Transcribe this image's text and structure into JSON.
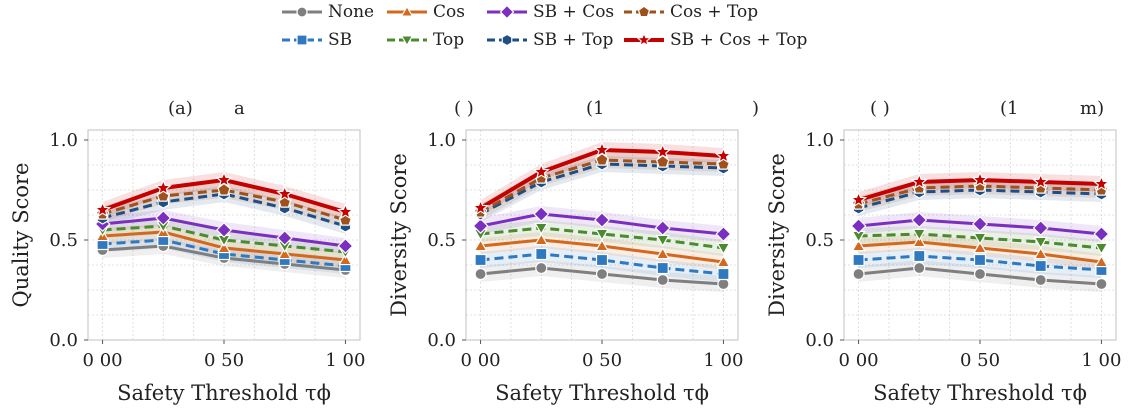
{
  "legend": {
    "items": [
      {
        "label": "None",
        "color": "#7f7f7f",
        "marker": "circle",
        "dash": "solid"
      },
      {
        "label": "Cos",
        "color": "#d2691e",
        "marker": "triangle-up",
        "dash": "solid"
      },
      {
        "label": "SB + Cos",
        "color": "#7b2fbe",
        "marker": "diamond",
        "dash": "solid"
      },
      {
        "label": "Cos + Top",
        "color": "#a0501a",
        "marker": "pentagon",
        "dash": "dashed"
      },
      {
        "label": "SB",
        "color": "#2f79c0",
        "marker": "square",
        "dash": "dashed"
      },
      {
        "label": "Top",
        "color": "#4b8a2f",
        "marker": "triangle-down",
        "dash": "dashed"
      },
      {
        "label": "SB + Top",
        "color": "#1f4e86",
        "marker": "hexagon",
        "dash": "dashed"
      },
      {
        "label": "SB + Cos + Top",
        "color": "#c40000",
        "marker": "star",
        "dash": "solid"
      }
    ]
  },
  "chart_data": [
    {
      "type": "line",
      "title_fragments": [
        "(a)",
        "a"
      ],
      "xlabel": "Safety Threshold τϕ",
      "ylabel": "Quality Score",
      "x": [
        0.0,
        0.25,
        0.5,
        0.75,
        1.0
      ],
      "xticks": [
        "0 00",
        "0 50",
        "1 00"
      ],
      "yticks": [
        "0.0",
        "0.5",
        "1.0"
      ],
      "xlim": [
        -0.06,
        1.06
      ],
      "ylim": [
        0.0,
        1.05
      ],
      "grid": true,
      "series": [
        {
          "name": "None",
          "values": [
            0.45,
            0.47,
            0.41,
            0.38,
            0.35
          ]
        },
        {
          "name": "SB",
          "values": [
            0.48,
            0.5,
            0.43,
            0.4,
            0.37
          ]
        },
        {
          "name": "Cos",
          "values": [
            0.52,
            0.54,
            0.46,
            0.43,
            0.4
          ]
        },
        {
          "name": "Top",
          "values": [
            0.55,
            0.57,
            0.5,
            0.47,
            0.44
          ]
        },
        {
          "name": "SB + Cos",
          "values": [
            0.58,
            0.61,
            0.55,
            0.51,
            0.47
          ]
        },
        {
          "name": "SB + Top",
          "values": [
            0.61,
            0.69,
            0.73,
            0.66,
            0.57
          ]
        },
        {
          "name": "Cos + Top",
          "values": [
            0.63,
            0.72,
            0.75,
            0.69,
            0.6
          ]
        },
        {
          "name": "SB + Cos + Top",
          "values": [
            0.65,
            0.76,
            0.8,
            0.73,
            0.64
          ]
        }
      ]
    },
    {
      "type": "line",
      "title_fragments": [
        "( )",
        "(1",
        ")"
      ],
      "xlabel": "Safety Threshold τϕ",
      "ylabel": "Diversity Score",
      "x": [
        0.0,
        0.25,
        0.5,
        0.75,
        1.0
      ],
      "xticks": [
        "0 00",
        "0 50",
        "1 00"
      ],
      "yticks": [
        "0.0",
        "0.5",
        "1.0"
      ],
      "xlim": [
        -0.06,
        1.06
      ],
      "ylim": [
        0.0,
        1.05
      ],
      "grid": true,
      "series": [
        {
          "name": "None",
          "values": [
            0.33,
            0.36,
            0.33,
            0.3,
            0.28
          ]
        },
        {
          "name": "SB",
          "values": [
            0.4,
            0.43,
            0.4,
            0.36,
            0.33
          ]
        },
        {
          "name": "Cos",
          "values": [
            0.47,
            0.5,
            0.47,
            0.43,
            0.39
          ]
        },
        {
          "name": "Top",
          "values": [
            0.53,
            0.56,
            0.53,
            0.5,
            0.46
          ]
        },
        {
          "name": "SB + Cos",
          "values": [
            0.57,
            0.63,
            0.6,
            0.56,
            0.53
          ]
        },
        {
          "name": "SB + Top",
          "values": [
            0.63,
            0.79,
            0.88,
            0.87,
            0.86
          ]
        },
        {
          "name": "Cos + Top",
          "values": [
            0.64,
            0.81,
            0.9,
            0.89,
            0.88
          ]
        },
        {
          "name": "SB + Cos + Top",
          "values": [
            0.66,
            0.84,
            0.95,
            0.94,
            0.92
          ]
        }
      ]
    },
    {
      "type": "line",
      "title_fragments": [
        "( )",
        "(1",
        "m)"
      ],
      "xlabel": "Safety Threshold τϕ",
      "ylabel": "Diversity Score",
      "x": [
        0.0,
        0.25,
        0.5,
        0.75,
        1.0
      ],
      "xticks": [
        "0 00",
        "0 50",
        "1 00"
      ],
      "yticks": [
        "0.0",
        "0.5",
        "1.0"
      ],
      "xlim": [
        -0.06,
        1.06
      ],
      "ylim": [
        0.0,
        1.05
      ],
      "grid": true,
      "series": [
        {
          "name": "None",
          "values": [
            0.33,
            0.36,
            0.33,
            0.3,
            0.28
          ]
        },
        {
          "name": "SB",
          "values": [
            0.4,
            0.42,
            0.4,
            0.37,
            0.35
          ]
        },
        {
          "name": "Cos",
          "values": [
            0.47,
            0.49,
            0.46,
            0.43,
            0.39
          ]
        },
        {
          "name": "Top",
          "values": [
            0.52,
            0.53,
            0.51,
            0.49,
            0.46
          ]
        },
        {
          "name": "SB + Cos",
          "values": [
            0.57,
            0.6,
            0.58,
            0.56,
            0.53
          ]
        },
        {
          "name": "SB + Top",
          "values": [
            0.66,
            0.74,
            0.75,
            0.74,
            0.73
          ]
        },
        {
          "name": "Cos + Top",
          "values": [
            0.68,
            0.76,
            0.77,
            0.76,
            0.75
          ]
        },
        {
          "name": "SB + Cos + Top",
          "values": [
            0.7,
            0.79,
            0.8,
            0.79,
            0.78
          ]
        }
      ]
    }
  ]
}
